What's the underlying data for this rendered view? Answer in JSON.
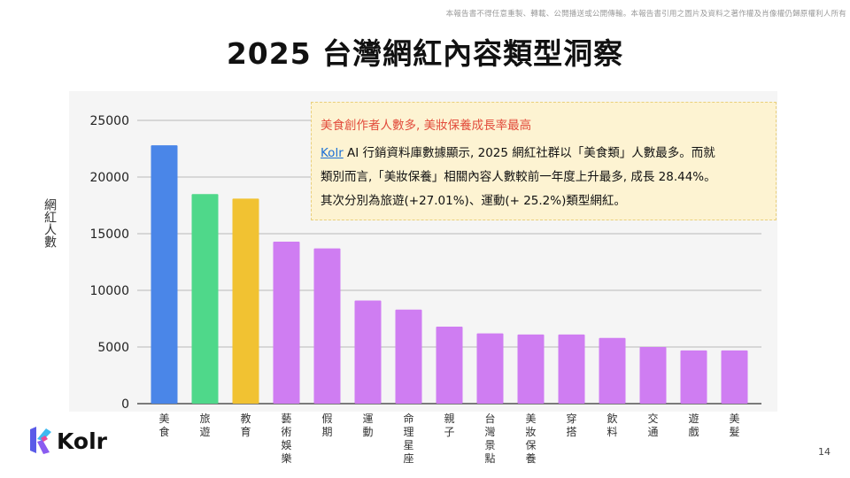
{
  "disclaimer": "本報告書不得任意重製、轉載、公開播送或公開傳輸。本報告書引用之圖片及資料之著作權及肖像權仍歸原權利人所有",
  "title": "2025 台灣網紅內容類型洞察",
  "note": {
    "heading": "美食創作者人數多, 美妝保養成長率最高",
    "link_text": "Kolr",
    "line1": " AI 行銷資料庫數據顯示, 2025 網紅社群以「美食類」人數最多。而就",
    "line2": "類別而言,「美妝保養」相關內容人數較前一年度上升最多, 成長 28.44%。",
    "line3": "其次分別為旅遊(+27.01%)、運動(+ 25.2%)類型網紅。"
  },
  "logo": {
    "text": "Kolr",
    "icon": "kolr-logo-icon"
  },
  "page_number": "14",
  "chart_data": {
    "type": "bar",
    "ylabel": "網紅人數",
    "xlabel": "",
    "ylim": [
      0,
      25000
    ],
    "yticks": [
      0,
      5000,
      10000,
      15000,
      20000,
      25000
    ],
    "grid": true,
    "categories": [
      "美食",
      "旅遊",
      "教育",
      "藝術娛樂",
      "假期",
      "運動",
      "命理星座",
      "親子",
      "台灣景點",
      "美妝保養",
      "穿搭",
      "飲料",
      "交通",
      "遊戲",
      "美髮"
    ],
    "values": [
      22800,
      18500,
      18100,
      14300,
      13700,
      9100,
      8300,
      6800,
      6200,
      6100,
      6100,
      5800,
      5000,
      4700,
      4700
    ],
    "colors": [
      "#4a86e8",
      "#4fd88a",
      "#f1c232",
      "#cf7df2",
      "#cf7df2",
      "#cf7df2",
      "#cf7df2",
      "#cf7df2",
      "#cf7df2",
      "#cf7df2",
      "#cf7df2",
      "#cf7df2",
      "#cf7df2",
      "#cf7df2",
      "#cf7df2"
    ]
  }
}
